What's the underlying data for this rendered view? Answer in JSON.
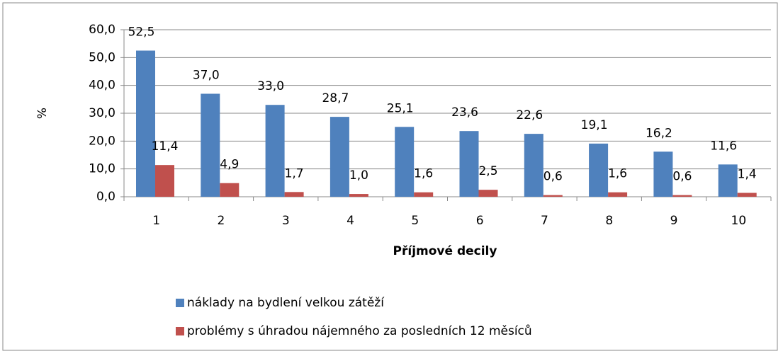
{
  "chart_data": {
    "type": "bar",
    "x_label": "Příjmové decily",
    "y_label": "%",
    "categories": [
      "1",
      "2",
      "3",
      "4",
      "5",
      "6",
      "7",
      "8",
      "9",
      "10"
    ],
    "series": [
      {
        "name": "náklady na bydlení velkou zátěží",
        "color": "#4f81bd",
        "values": [
          52.5,
          37.0,
          33.0,
          28.7,
          25.1,
          23.6,
          22.6,
          19.1,
          16.2,
          11.6
        ],
        "value_labels": [
          "52,5",
          "37,0",
          "33,0",
          "28,7",
          "25,1",
          "23,6",
          "22,6",
          "19,1",
          "16,2",
          "11,6"
        ]
      },
      {
        "name": "problémy s úhradou nájemného za posledních 12 měsíců",
        "color": "#c0504d",
        "values": [
          11.4,
          4.9,
          1.7,
          1.0,
          1.6,
          2.5,
          0.6,
          1.6,
          0.6,
          1.4
        ],
        "value_labels": [
          "11,4",
          "4,9",
          "1,7",
          "1,0",
          "1,6",
          "2,5",
          "0,6",
          "1,6",
          "0,6",
          "1,4"
        ]
      }
    ],
    "ylim": [
      0,
      60
    ],
    "yticks": [
      {
        "value": 0,
        "label": "0,0"
      },
      {
        "value": 10,
        "label": "10,0"
      },
      {
        "value": 20,
        "label": "20,0"
      },
      {
        "value": 30,
        "label": "30,0"
      },
      {
        "value": 40,
        "label": "40,0"
      },
      {
        "value": 50,
        "label": "50,0"
      },
      {
        "value": 60,
        "label": "60,0"
      }
    ],
    "grid": true,
    "legend": "bottom"
  }
}
